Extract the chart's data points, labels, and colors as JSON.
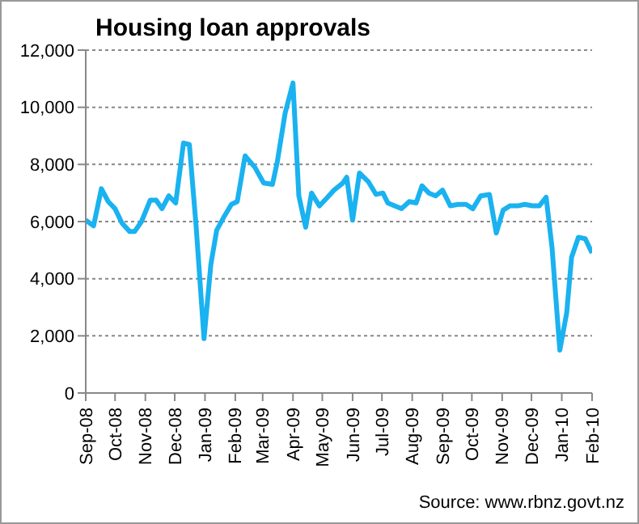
{
  "chart_data": {
    "type": "line",
    "title": "Housing loan approvals",
    "annotations": [
      "Source: www.rbnz.govt.nz"
    ],
    "x": [
      "2008-09-01",
      "2008-09-09",
      "2008-09-17",
      "2008-09-24",
      "2008-10-01",
      "2008-10-08",
      "2008-10-16",
      "2008-10-21",
      "2008-10-28",
      "2008-11-06",
      "2008-11-12",
      "2008-11-18",
      "2008-11-25",
      "2008-12-02",
      "2008-12-10",
      "2008-12-16",
      "2008-12-23",
      "2008-12-31",
      "2009-01-07",
      "2009-01-13",
      "2009-01-21",
      "2009-01-28",
      "2009-02-03",
      "2009-02-11",
      "2009-02-21",
      "2009-03-02",
      "2009-03-11",
      "2009-03-16",
      "2009-03-24",
      "2009-04-01",
      "2009-04-07",
      "2009-04-14",
      "2009-04-20",
      "2009-04-28",
      "2009-05-05",
      "2009-05-13",
      "2009-05-22",
      "2009-05-26",
      "2009-06-01",
      "2009-06-08",
      "2009-06-17",
      "2009-06-25",
      "2009-07-02",
      "2009-07-07",
      "2009-07-14",
      "2009-07-21",
      "2009-07-29",
      "2009-08-05",
      "2009-08-11",
      "2009-08-18",
      "2009-08-25",
      "2009-09-01",
      "2009-09-09",
      "2009-09-17",
      "2009-09-25",
      "2009-10-02",
      "2009-10-10",
      "2009-10-19",
      "2009-10-26",
      "2009-11-02",
      "2009-11-09",
      "2009-11-17",
      "2009-11-24",
      "2009-12-02",
      "2009-12-09",
      "2009-12-16",
      "2009-12-22",
      "2009-12-30",
      "2010-01-06",
      "2010-01-11",
      "2010-01-18",
      "2010-01-25",
      "2010-02-01"
    ],
    "series": [
      {
        "color": "#1ab2f0",
        "values": [
          6050,
          5850,
          7150,
          6700,
          6450,
          5950,
          5650,
          5650,
          6000,
          6750,
          6750,
          6450,
          6900,
          6650,
          8750,
          8700,
          5800,
          1900,
          4500,
          5700,
          6200,
          6600,
          6700,
          8300,
          7900,
          7350,
          7300,
          8100,
          9800,
          10850,
          6900,
          5800,
          7000,
          6550,
          6800,
          7100,
          7350,
          7550,
          6050,
          7700,
          7400,
          6950,
          7000,
          6650,
          6550,
          6450,
          6700,
          6650,
          7250,
          7000,
          6900,
          7100,
          6550,
          6600,
          6600,
          6450,
          6900,
          6950,
          5600,
          6400,
          6550,
          6550,
          6600,
          6550,
          6550,
          6850,
          5100,
          1500,
          2800,
          4750,
          5450,
          5400,
          4900
        ]
      }
    ],
    "xlim": [
      "2008-09-01",
      "2010-02-01"
    ],
    "xticks": [
      {
        "value": "2008-09-01",
        "label": "Sep-08"
      },
      {
        "value": "2008-10-01",
        "label": "Oct-08"
      },
      {
        "value": "2008-11-01",
        "label": "Nov-08"
      },
      {
        "value": "2008-12-01",
        "label": "Dec-08"
      },
      {
        "value": "2009-01-01",
        "label": "Jan-09"
      },
      {
        "value": "2009-02-01",
        "label": "Feb-09"
      },
      {
        "value": "2009-03-01",
        "label": "Mar-09"
      },
      {
        "value": "2009-04-01",
        "label": "Apr-09"
      },
      {
        "value": "2009-05-01",
        "label": "May-09"
      },
      {
        "value": "2009-06-01",
        "label": "Jun-09"
      },
      {
        "value": "2009-07-01",
        "label": "Jul-09"
      },
      {
        "value": "2009-08-01",
        "label": "Aug-09"
      },
      {
        "value": "2009-09-01",
        "label": "Sep-09"
      },
      {
        "value": "2009-10-01",
        "label": "Oct-09"
      },
      {
        "value": "2009-11-01",
        "label": "Nov-09"
      },
      {
        "value": "2009-12-01",
        "label": "Dec-09"
      },
      {
        "value": "2010-01-01",
        "label": "Jan-10"
      },
      {
        "value": "2010-02-01",
        "label": "Feb-10"
      }
    ],
    "ylim": [
      0,
      12000
    ],
    "yticks": [
      0,
      {
        "value": 2000,
        "label": "2,000"
      },
      {
        "value": 4000,
        "label": "4,000"
      },
      {
        "value": 6000,
        "label": "6,000"
      },
      {
        "value": 8000,
        "label": "8,000"
      },
      {
        "value": 10000,
        "label": "10,000"
      },
      {
        "value": 12000,
        "label": "12,000"
      }
    ],
    "grid": "y",
    "legend": false,
    "marker": "none",
    "line_style": "solid"
  }
}
